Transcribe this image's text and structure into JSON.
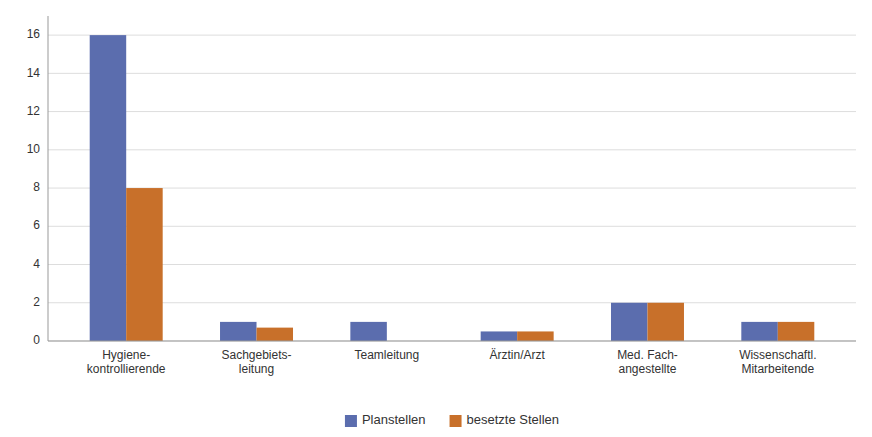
{
  "chart_data": {
    "type": "bar",
    "categories": [
      "Hygiene-\nkontrollierende",
      "Sachgebiets-\nleitung",
      "Teamleitung",
      "Ärztin/Arzt",
      "Med. Fach-\nangestellte",
      "Wissenschaftl.\nMitarbeitende"
    ],
    "series": [
      {
        "name": "Planstellen",
        "color": "#5B6DAE",
        "values": [
          16,
          1,
          1,
          0.5,
          2,
          1
        ]
      },
      {
        "name": "besetzte Stellen",
        "color": "#C8702A",
        "values": [
          8,
          0.7,
          0,
          0.5,
          2,
          1
        ]
      }
    ],
    "ylim": [
      0,
      17
    ],
    "yticks": [
      0,
      2,
      4,
      6,
      8,
      10,
      12,
      14,
      16
    ],
    "grid": true,
    "legend": "bottom"
  }
}
